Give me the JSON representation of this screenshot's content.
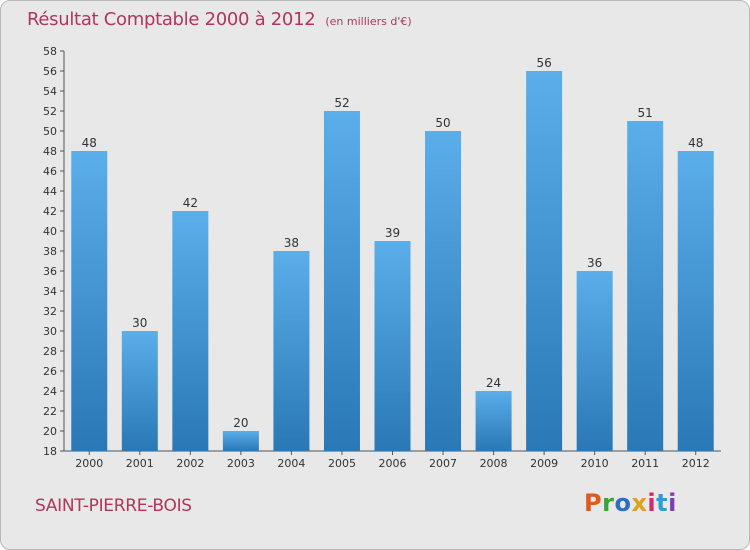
{
  "header": {
    "title": "Résultat Comptable 2000 à 2012",
    "subtitle": "(en milliers d'€)"
  },
  "footer": {
    "commune": "SAINT-PIERRE-BOIS",
    "logo_text": "Proxiti"
  },
  "colors": {
    "title": "#b0365b",
    "bar_top": "#5aaeea",
    "bar_bottom": "#2a78b6",
    "background": "#e8e8e8",
    "logo": [
      "#e05a1c",
      "#3aa33a",
      "#2b6fc4",
      "#e0a21c",
      "#d12a6b",
      "#2b9fd1",
      "#7a3fb0"
    ]
  },
  "chart_data": {
    "type": "bar",
    "title": "Résultat Comptable 2000 à 2012",
    "subtitle": "(en milliers d'€)",
    "categories": [
      "2000",
      "2001",
      "2002",
      "2003",
      "2004",
      "2005",
      "2006",
      "2007",
      "2008",
      "2009",
      "2010",
      "2011",
      "2012"
    ],
    "values": [
      48,
      30,
      42,
      20,
      38,
      52,
      39,
      50,
      24,
      56,
      36,
      51,
      48
    ],
    "ylim": [
      18,
      58
    ],
    "ytick_step": 2,
    "grid": false,
    "legend": "none",
    "xlabel": "",
    "ylabel": ""
  }
}
